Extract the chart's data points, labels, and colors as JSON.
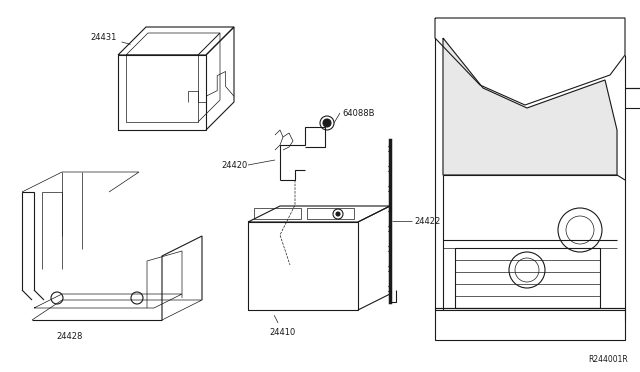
{
  "bg_color": "#ffffff",
  "line_color": "#1a1a1a",
  "lw": 0.8,
  "tlw": 0.5,
  "fig_w": 6.4,
  "fig_h": 3.72,
  "dpi": 100,
  "ref_code": "R244001R",
  "label_fontsize": 6.0
}
